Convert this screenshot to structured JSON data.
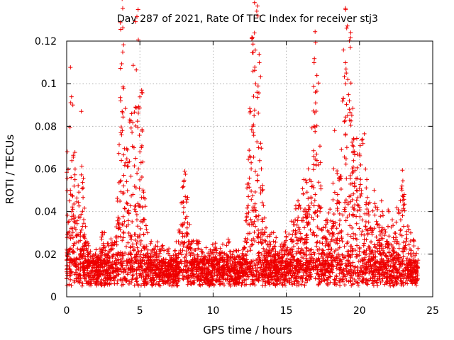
{
  "chart_data": {
    "type": "scatter",
    "title": "Day 287 of 2021, Rate Of TEC Index for receiver stj3",
    "xlabel": "GPS time / hours",
    "ylabel": "ROTI / TECUs",
    "xlim": [
      0,
      25
    ],
    "ylim": [
      0,
      0.12
    ],
    "xticks": [
      0,
      5,
      10,
      15,
      20,
      25
    ],
    "yticks": [
      0,
      0.02,
      0.04,
      0.06,
      0.08,
      0.1,
      0.12
    ],
    "xtick_labels": [
      "0",
      "5",
      "10",
      "15",
      "20",
      "25"
    ],
    "ytick_labels": [
      "0",
      "0.02",
      "0.04",
      "0.06",
      "0.08",
      "0.1",
      "0.12"
    ],
    "grid": true,
    "marker": "+",
    "color": "#ee0000",
    "series": [
      {
        "name": "ROTI",
        "x_range": [
          0,
          24
        ],
        "baseline": 0.011,
        "x": [
          0.1,
          0.2,
          0.25,
          0.3,
          0.35,
          0.4,
          0.5,
          1.0,
          1.5,
          2.5,
          3.0,
          3.7,
          3.75,
          3.8,
          3.9,
          4.3,
          4.6,
          4.7,
          4.8,
          4.9,
          5.0,
          5.1,
          5.2,
          6.0,
          7.0,
          8.0,
          8.1,
          8.2,
          9.0,
          10.0,
          11.0,
          12.5,
          12.6,
          12.8,
          12.9,
          13.0,
          13.1,
          13.3,
          14.0,
          15.0,
          15.5,
          15.8,
          16.2,
          16.5,
          16.9,
          17.0,
          17.1,
          17.3,
          17.8,
          18.3,
          18.5,
          18.9,
          19.1,
          19.2,
          19.3,
          19.5,
          19.8,
          20.0,
          20.2,
          20.5,
          21.0,
          21.5,
          22.0,
          22.5,
          22.9,
          23.0,
          23.5
        ],
        "y": [
          0.03,
          0.045,
          0.05,
          0.056,
          0.04,
          0.032,
          0.025,
          0.087,
          0.02,
          0.025,
          0.022,
          0.077,
          0.076,
          0.078,
          0.057,
          0.083,
          0.07,
          0.065,
          0.058,
          0.06,
          0.068,
          0.07,
          0.035,
          0.02,
          0.015,
          0.054,
          0.047,
          0.03,
          0.025,
          0.02,
          0.018,
          0.066,
          0.06,
          0.085,
          0.1,
          0.096,
          0.07,
          0.06,
          0.03,
          0.028,
          0.035,
          0.045,
          0.055,
          0.06,
          0.08,
          0.091,
          0.064,
          0.04,
          0.035,
          0.078,
          0.045,
          0.093,
          0.105,
          0.102,
          0.088,
          0.06,
          0.05,
          0.067,
          0.074,
          0.055,
          0.05,
          0.045,
          0.04,
          0.035,
          0.052,
          0.043,
          0.03
        ]
      }
    ]
  }
}
